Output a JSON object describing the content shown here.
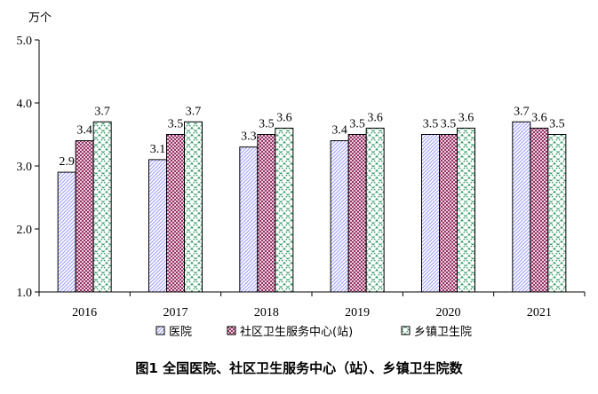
{
  "chart_data": {
    "type": "bar",
    "title": "图1 全国医院、社区卫生服务中心（站）、乡镇卫生院数",
    "ylabel": "万个",
    "xlabel": "",
    "categories": [
      "2016",
      "2017",
      "2018",
      "2019",
      "2020",
      "2021"
    ],
    "ylim": [
      1.0,
      5.0
    ],
    "yticks": [
      "1.0",
      "2.0",
      "3.0",
      "4.0",
      "5.0"
    ],
    "grid": false,
    "legend": "bottom",
    "series": [
      {
        "name": "医院",
        "values": [
          2.9,
          3.1,
          3.3,
          3.4,
          3.5,
          3.7
        ],
        "labels": [
          "2.9",
          "3.1",
          "3.3",
          "3.4",
          "3.5",
          "3.7"
        ],
        "color": "#9999ff",
        "pattern": "diagonal-lines"
      },
      {
        "name": "社区卫生服务中心(站)",
        "values": [
          3.4,
          3.5,
          3.5,
          3.5,
          3.5,
          3.6
        ],
        "labels": [
          "3.4",
          "3.5",
          "3.5",
          "3.5",
          "3.5",
          "3.6"
        ],
        "color": "#993366",
        "pattern": "checker"
      },
      {
        "name": "乡镇卫生院",
        "values": [
          3.7,
          3.7,
          3.6,
          3.6,
          3.6,
          3.5
        ],
        "labels": [
          "3.7",
          "3.7",
          "3.6",
          "3.6",
          "3.6",
          "3.5"
        ],
        "color": "#339966",
        "pattern": "dashed-crosshatch"
      }
    ]
  }
}
